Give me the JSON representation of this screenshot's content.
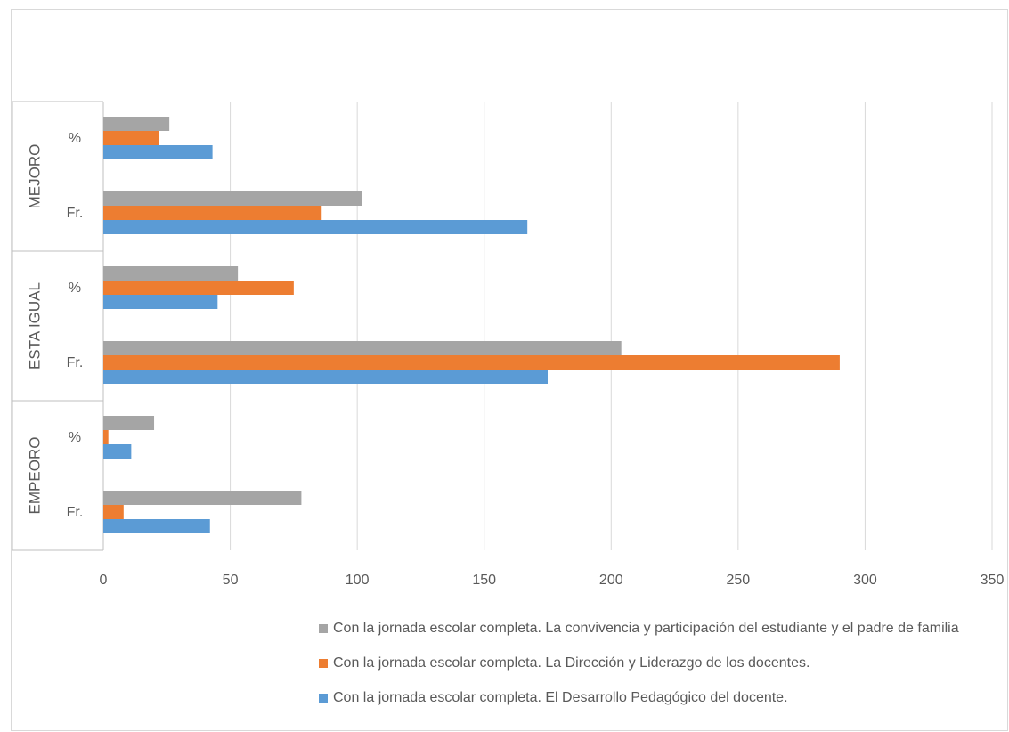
{
  "chart_data": {
    "type": "bar",
    "orientation": "horizontal",
    "groups": [
      {
        "label": "MEJORO",
        "categories": [
          "%",
          "Fr."
        ]
      },
      {
        "label": "ESTA IGUAL",
        "categories": [
          "%",
          "Fr."
        ]
      },
      {
        "label": "EMPEORO",
        "categories": [
          "%",
          "Fr."
        ]
      }
    ],
    "series": [
      {
        "name": "Con la jornada escolar completa. La convivencia y participación del estudiante y el padre de familia",
        "color": "#a5a5a5",
        "values": [
          [
            26,
            102
          ],
          [
            53,
            204
          ],
          [
            20,
            78
          ]
        ]
      },
      {
        "name": "Con la jornada escolar completa. La Dirección y Liderazgo de los docentes.",
        "color": "#ed7d31",
        "values": [
          [
            22,
            86
          ],
          [
            75,
            290
          ],
          [
            2,
            8
          ]
        ]
      },
      {
        "name": "Con la jornada escolar completa. El Desarrollo Pedagógico del docente.",
        "color": "#5b9bd5",
        "values": [
          [
            43,
            167
          ],
          [
            45,
            175
          ],
          [
            11,
            42
          ]
        ]
      }
    ],
    "xlim": [
      0,
      350
    ],
    "xticks": [
      "0",
      "50",
      "100",
      "150",
      "200",
      "250",
      "300",
      "350"
    ],
    "grid": true,
    "legend_position": "bottom"
  }
}
